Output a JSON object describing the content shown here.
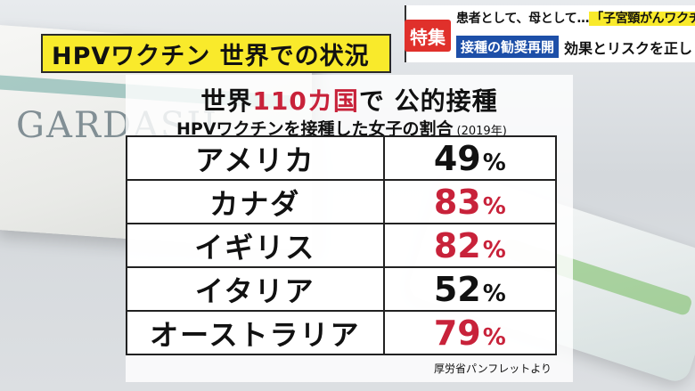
{
  "title": "HPVワクチン 世界での状況",
  "banner": {
    "tag_label": "特集",
    "line1_prefix": "患者として、母として…",
    "line1_highlight": "「子宮頸がんワクチンを」",
    "line2_tag": "接種の勧奨再開",
    "line2_sub": "効果とリスクを正しく"
  },
  "panel": {
    "heading_pre": "世界",
    "heading_num": "110カ国",
    "heading_post": "で 公的接種",
    "subheading": "HPVワクチンを接種した女子の割合",
    "year": "(2019年)"
  },
  "rows": [
    {
      "country": "アメリカ",
      "value": "49",
      "unit": "%",
      "color": "#111111"
    },
    {
      "country": "カナダ",
      "value": "83",
      "unit": "%",
      "color": "#c8223a"
    },
    {
      "country": "イギリス",
      "value": "82",
      "unit": "%",
      "color": "#c8223a"
    },
    {
      "country": "イタリア",
      "value": "52",
      "unit": "%",
      "color": "#111111"
    },
    {
      "country": "オーストラリア",
      "value": "79",
      "unit": "%",
      "color": "#c8223a"
    }
  ],
  "source": "厚労省パンフレットより",
  "background": {
    "box_label": "GARDASIL"
  },
  "colors": {
    "title_bg": "#f9ea2b",
    "accent_red": "#c8223a",
    "tag_red": "#e0302b",
    "tag_blue": "#1d4fa8"
  }
}
